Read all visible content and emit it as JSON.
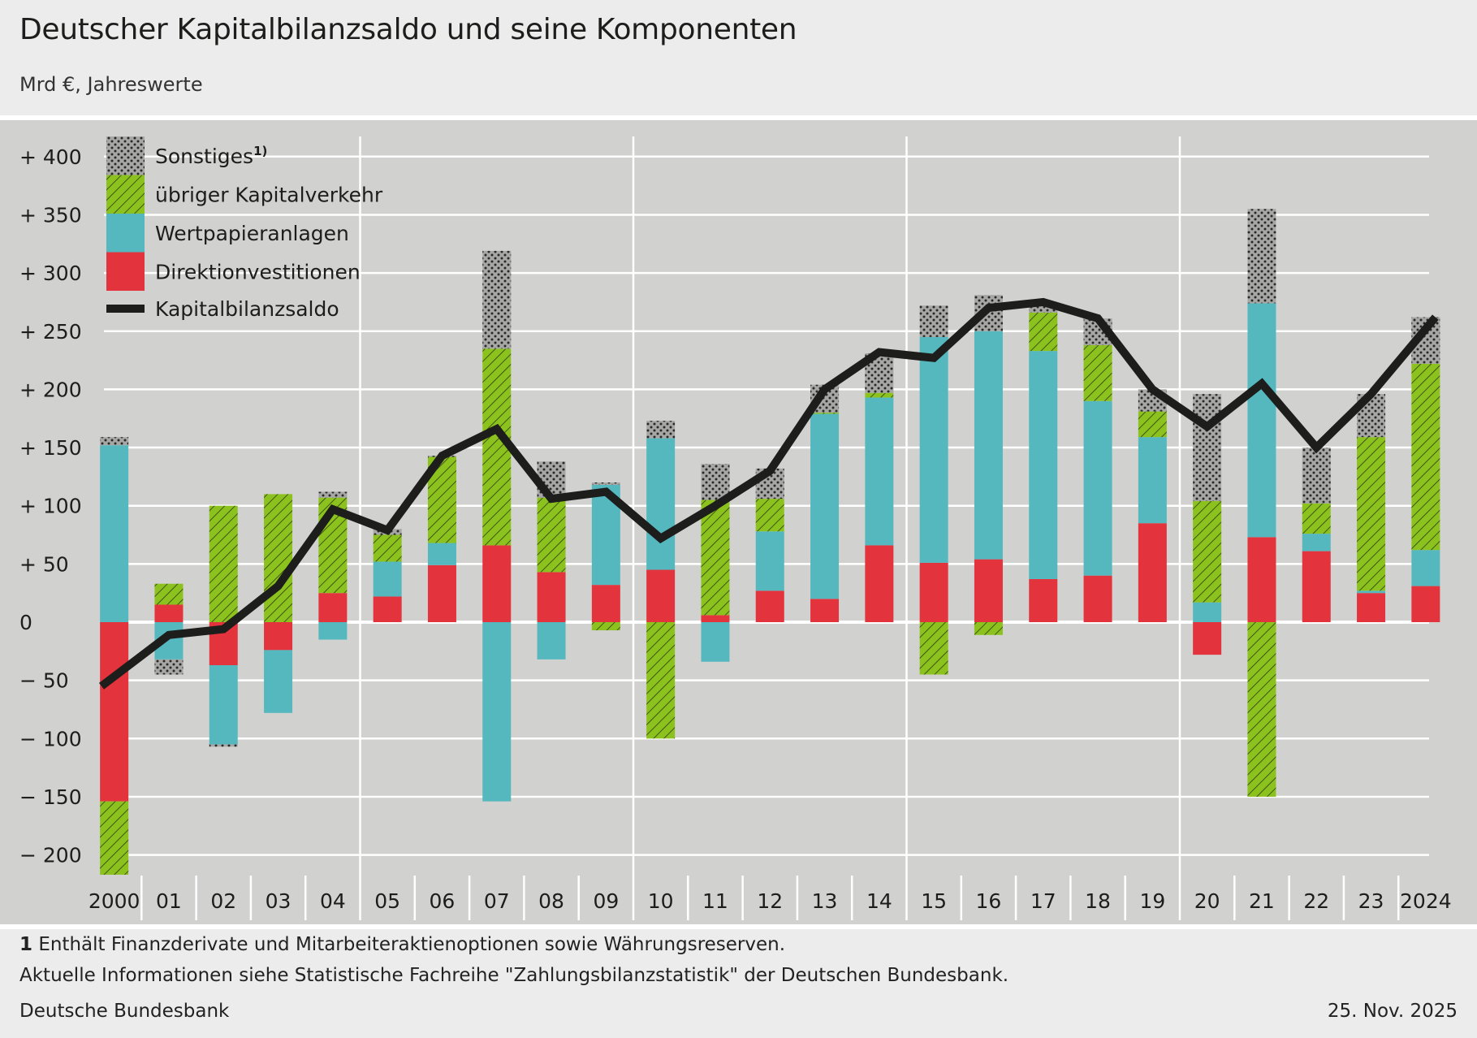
{
  "header": {
    "title": "Deutscher Kapitalbilanzsaldo und seine Komponenten",
    "subtitle": "Mrd €, Jahreswerte"
  },
  "footer": {
    "footnote_number": "1",
    "footnote_text": " Enthält Finanzderivate und Mitarbeiteraktienoptionen sowie Währungsreserven.",
    "info": "Aktuelle Informationen siehe Statistische Fachreihe \"Zahlungsbilanzstatistik\" der Deutschen Bundesbank.",
    "source": "Deutsche Bundesbank",
    "date": "25. Nov. 2025"
  },
  "chart_data": {
    "type": "bar",
    "stacked": true,
    "title": "Deutscher Kapitalbilanzsaldo und seine Komponenten",
    "ylabel": "Mrd €",
    "ylim": [
      -220,
      420
    ],
    "yticks": [
      400,
      350,
      300,
      250,
      200,
      150,
      100,
      50,
      0,
      -50,
      -100,
      -150,
      -200
    ],
    "ytick_labels": [
      "+ 400",
      "+ 350",
      "+ 300",
      "+ 250",
      "+ 200",
      "+ 150",
      "+ 100",
      "+   50",
      "0",
      "−   50",
      "− 100",
      "− 150",
      "− 200"
    ],
    "categories": [
      "2000",
      "01",
      "02",
      "03",
      "04",
      "05",
      "06",
      "07",
      "08",
      "09",
      "10",
      "11",
      "12",
      "13",
      "14",
      "15",
      "16",
      "17",
      "18",
      "19",
      "20",
      "21",
      "22",
      "23",
      "2024"
    ],
    "grid": true,
    "legend_position": "top-left",
    "series": [
      {
        "name": "Direktionvestitionen",
        "color": "#e3333c",
        "pattern": "solid",
        "values": [
          -154,
          15,
          -37,
          -24,
          25,
          22,
          49,
          66,
          43,
          32,
          45,
          6,
          27,
          20,
          66,
          51,
          54,
          37,
          40,
          85,
          -28,
          73,
          61,
          25,
          31
        ]
      },
      {
        "name": "Wertpapieranlagen",
        "color": "#55b8bf",
        "pattern": "solid",
        "values": [
          152,
          -32,
          -68,
          -54,
          -15,
          30,
          19,
          -154,
          -32,
          86,
          113,
          -34,
          51,
          159,
          127,
          194,
          196,
          196,
          150,
          74,
          17,
          201,
          15,
          2,
          31
        ]
      },
      {
        "name": "übriger Kapitalverkehr",
        "color": "#8cc21e",
        "pattern": "hatch",
        "values": [
          -63,
          18,
          100,
          110,
          82,
          23,
          74,
          169,
          64,
          -7,
          -100,
          99,
          28,
          1,
          4,
          -45,
          -11,
          33,
          48,
          22,
          87,
          -150,
          26,
          132,
          160
        ]
      },
      {
        "name": "Sonstiges",
        "superscript": "1)",
        "color": "#a7a7a5",
        "pattern": "dots",
        "values": [
          7,
          -13,
          -2,
          0,
          5,
          5,
          1,
          84,
          31,
          2,
          15,
          31,
          26,
          24,
          34,
          27,
          31,
          9,
          23,
          19,
          92,
          81,
          48,
          37,
          40
        ]
      }
    ],
    "line": {
      "name": "Kapitalbilanzsaldo",
      "color": "#1d1d1b",
      "values": [
        -55,
        -11,
        -6,
        31,
        97,
        79,
        143,
        166,
        106,
        112,
        72,
        100,
        130,
        200,
        232,
        227,
        270,
        275,
        261,
        200,
        168,
        205,
        150,
        196,
        262
      ]
    }
  }
}
